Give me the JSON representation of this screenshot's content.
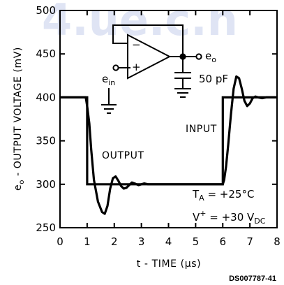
{
  "watermark": "4.ue.c.n",
  "chart_data": {
    "type": "line",
    "title": "",
    "xlabel": "t - TIME (µs)",
    "ylabel": "eo - OUTPUT VOLTAGE (mV)",
    "xlim": [
      0,
      8
    ],
    "ylim": [
      250,
      500
    ],
    "x_ticks": [
      "0",
      "1",
      "2",
      "3",
      "4",
      "5",
      "6",
      "7",
      "8"
    ],
    "y_ticks": [
      "250",
      "300",
      "350",
      "400",
      "450",
      "500"
    ],
    "grid": false,
    "series": [
      {
        "name": "INPUT",
        "x": [
          0,
          1.0,
          1.0,
          6.0,
          6.0,
          8.0
        ],
        "y": [
          400,
          400,
          300,
          300,
          400,
          400
        ]
      },
      {
        "name": "OUTPUT",
        "x": [
          0,
          0.95,
          1.0,
          1.08,
          1.15,
          1.25,
          1.4,
          1.55,
          1.65,
          1.75,
          1.85,
          1.95,
          2.05,
          2.15,
          2.25,
          2.35,
          2.45,
          2.55,
          2.65,
          2.75,
          2.9,
          3.0,
          3.1,
          3.25,
          3.4,
          3.55,
          3.7,
          6.0,
          6.05,
          6.12,
          6.2,
          6.3,
          6.4,
          6.5,
          6.6,
          6.7,
          6.8,
          6.9,
          7.0,
          7.1,
          7.2,
          7.3,
          7.45,
          7.6,
          7.8,
          8.0
        ],
        "y": [
          400,
          400,
          390,
          370,
          340,
          305,
          280,
          268,
          266,
          275,
          295,
          307,
          309,
          304,
          298,
          295,
          296,
          299,
          302,
          301,
          299,
          300,
          301,
          300,
          300,
          300,
          300,
          300,
          305,
          320,
          345,
          380,
          410,
          424,
          422,
          410,
          396,
          390,
          393,
          399,
          401,
          400,
          399,
          400,
          400,
          400
        ]
      }
    ],
    "annotations": {
      "output_label": "OUTPUT",
      "input_label": "INPUT",
      "ta_main": "T",
      "ta_sub": "A",
      "ta_value": " = +25°C",
      "vplus_main": "V",
      "vplus_sup": "+",
      "vplus_value": " = +30 V",
      "vplus_sub": "DC",
      "cap_label": "50 pF",
      "eo_main": "e",
      "eo_sub": "o",
      "ein_main": "e",
      "ein_sub": "in",
      "minus_sign": "−",
      "plus_sign": "+"
    },
    "code": "DS007787-41"
  }
}
